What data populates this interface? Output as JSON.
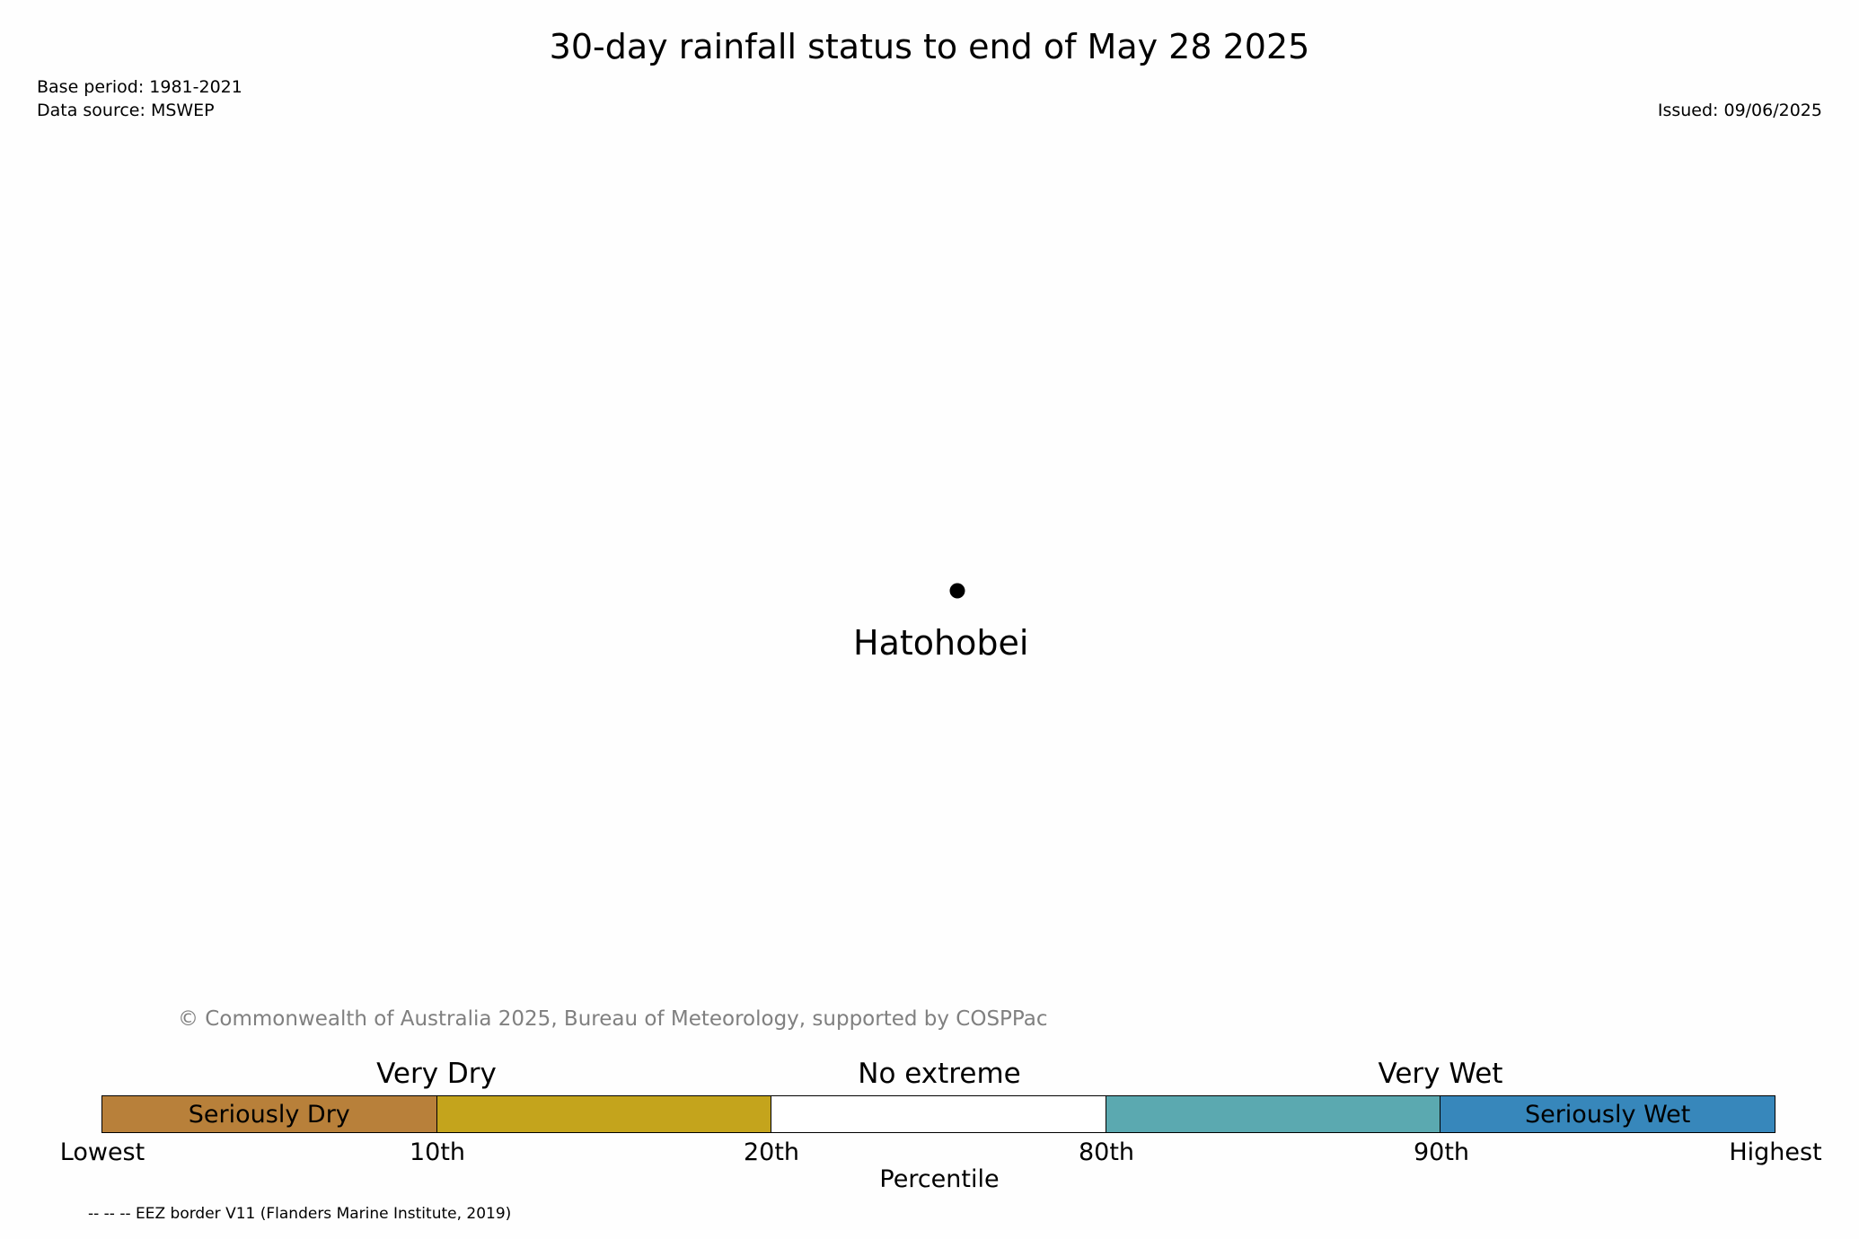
{
  "header": {
    "title": "30-day rainfall status to end of May 28 2025",
    "base_period": "Base period: 1981-2021",
    "data_source": "Data source: MSWEP",
    "issued": "Issued: 09/06/2025"
  },
  "map": {
    "places": [
      {
        "name": "Hatohobei",
        "marker": "circle",
        "color": "#000000"
      }
    ]
  },
  "copyright": "© Commonwealth of Australia 2025, Bureau of Meteorology, supported by COSPPac",
  "legend": {
    "group_labels": [
      "Very Dry",
      "No extreme",
      "Very Wet"
    ],
    "segments": [
      {
        "label": "Seriously Dry",
        "color": "#b8803a"
      },
      {
        "label": "",
        "color": "#c4a41c"
      },
      {
        "label": "",
        "color": "#ffffff"
      },
      {
        "label": "",
        "color": "#5ba9b0"
      },
      {
        "label": "Seriously Wet",
        "color": "#3787bb"
      }
    ],
    "ticks": [
      "Lowest",
      "10th",
      "20th",
      "80th",
      "90th",
      "Highest"
    ],
    "axis_title": "Percentile"
  },
  "footnote": "-- -- -- EEZ border V11 (Flanders Marine Institute, 2019)"
}
